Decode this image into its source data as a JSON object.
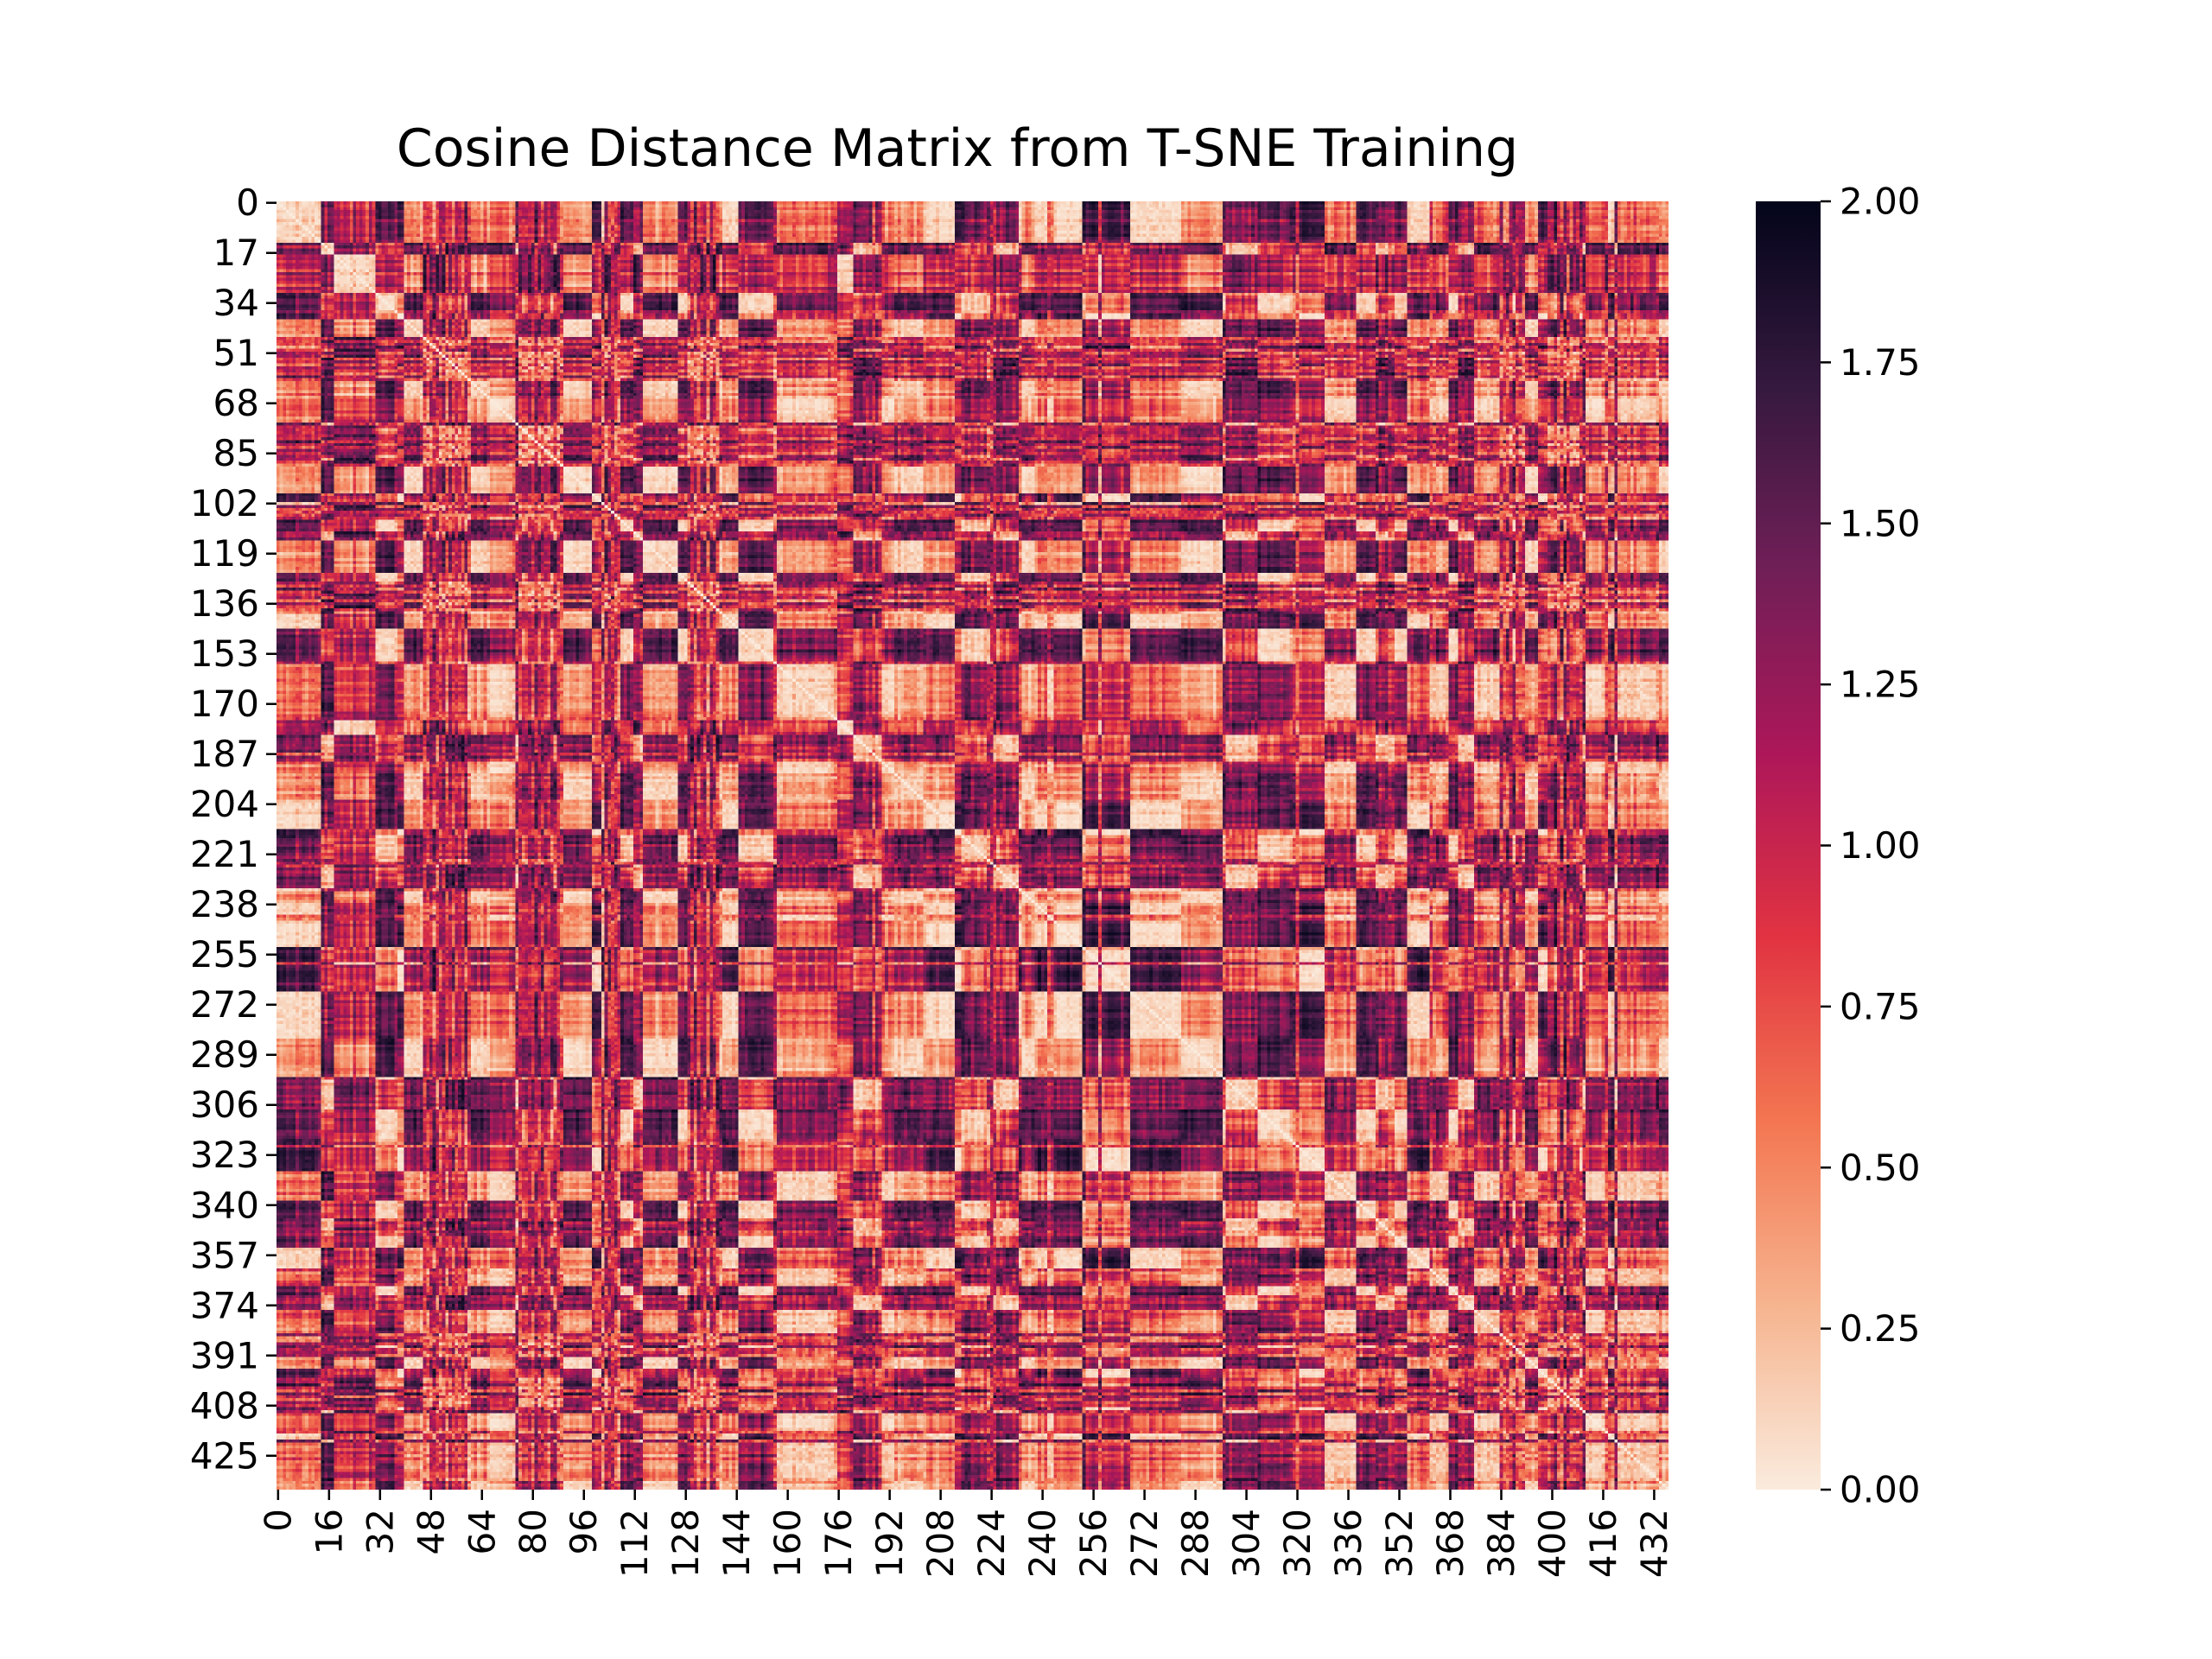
{
  "chart_data": {
    "type": "heatmap",
    "title": "Cosine Distance Matrix from T-SNE Training",
    "xlabel": "",
    "ylabel": "",
    "n_rows": 437,
    "n_cols": 437,
    "x_ticks": [
      0,
      16,
      32,
      48,
      64,
      80,
      96,
      112,
      128,
      144,
      160,
      176,
      192,
      208,
      224,
      240,
      256,
      272,
      288,
      304,
      320,
      336,
      352,
      368,
      384,
      400,
      416,
      432
    ],
    "y_ticks": [
      0,
      17,
      34,
      51,
      68,
      85,
      102,
      119,
      136,
      153,
      170,
      187,
      204,
      221,
      238,
      255,
      272,
      289,
      306,
      323,
      340,
      357,
      374,
      391,
      408,
      425
    ],
    "colorbar": {
      "min": 0.0,
      "max": 2.0,
      "ticks": [
        "0.00",
        "0.25",
        "0.50",
        "0.75",
        "1.00",
        "1.25",
        "1.50",
        "1.75",
        "2.00"
      ],
      "colormap": "rocket_r",
      "colors": [
        "#faebdd",
        "#f6b48f",
        "#f37651",
        "#e13342",
        "#ad1759",
        "#701f57",
        "#35193e",
        "#03051a"
      ]
    },
    "values_description": "symmetric cosine distance matrix, zero diagonal, values range 0 to 2"
  }
}
